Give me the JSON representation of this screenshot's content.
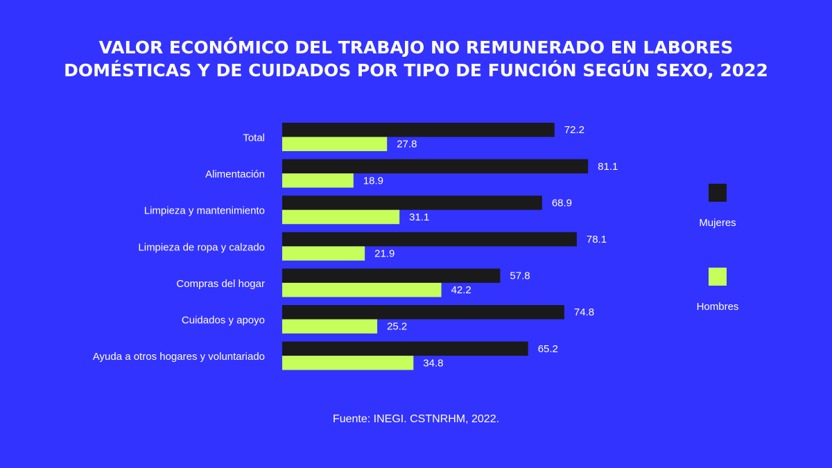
{
  "title_line1": "VALOR ECONÓMICO DEL TRABAJO NO REMUNERADO EN LABORES",
  "title_line2": "DOMÉSTICAS Y DE CUIDADOS POR TIPO DE FUNCIÓN SEGÚN SEXO, 2022",
  "source": "Fuente: INEGI. CSTNRHM, 2022.",
  "colors": {
    "background": "#3333ff",
    "mujeres": "#1a1a1a",
    "hombres": "#c6ff5a",
    "text": "#ffffff"
  },
  "chart_data": {
    "type": "bar",
    "orientation": "horizontal",
    "title": "VALOR ECONÓMICO DEL TRABAJO NO REMUNERADO EN LABORES DOMÉSTICAS Y DE CUIDADOS POR TIPO DE FUNCIÓN SEGÚN SEXO, 2022",
    "categories": [
      "Total",
      "Alimentación",
      "Limpieza y mantenimiento",
      "Limpieza de ropa y calzado",
      "Compras del hogar",
      "Cuidados y apoyo",
      "Ayuda a otros hogares y voluntariado"
    ],
    "series": [
      {
        "name": "Mujeres",
        "values": [
          72.2,
          81.1,
          68.9,
          78.1,
          57.8,
          74.8,
          65.2
        ],
        "labels": [
          "72.2",
          "81.1",
          "68.9",
          "78.1",
          "57.8",
          "74.8",
          "65.2"
        ]
      },
      {
        "name": "Hombres",
        "values": [
          27.8,
          18.9,
          31.1,
          21.9,
          42.2,
          25.2,
          34.8
        ],
        "labels": [
          "27.8",
          "18.9",
          "31.1",
          "21.9",
          "42.2",
          "25.2",
          "34.8"
        ]
      }
    ],
    "xlim": [
      0,
      100
    ],
    "grid": false,
    "legend_position": "right"
  }
}
